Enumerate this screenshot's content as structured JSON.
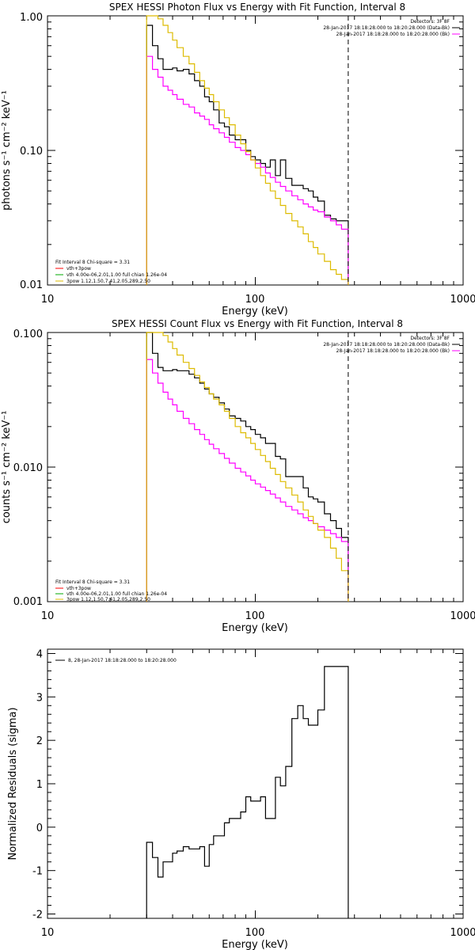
{
  "chart_data": [
    {
      "type": "line",
      "title": "SPEX HESSI Photon Flux vs Energy with Fit Function, Interval 8",
      "xlabel": "Energy (keV)",
      "ylabel": "photons s⁻¹ cm⁻² keV⁻¹",
      "xscale": "log",
      "yscale": "log",
      "xlim": [
        10,
        1000
      ],
      "ylim": [
        0.01,
        1.0
      ],
      "x_tick_labels": [
        "10",
        "100",
        "1000"
      ],
      "y_tick_labels": [
        "0.01",
        "0.10",
        "1.00"
      ],
      "fit_range_end_keV": 280,
      "legend_top_right": [
        {
          "text": "Detectors: 3F 8F",
          "color": "#000000"
        },
        {
          "text": "28-Jan-2017 18:18:28.000 to 18:20:28.000 (Data-Bk)",
          "color": "#000000"
        },
        {
          "text": "28-Jan-2017 18:18:28.000 to 18:20:28.000 (Bk)",
          "color": "#ff00ff"
        }
      ],
      "legend_bottom_left": [
        {
          "text": "Fit Interval 8   Chi-square = 3.31",
          "color": "#000000"
        },
        {
          "text": "vth+3pow",
          "color": "#ff0000"
        },
        {
          "text": "vth 4.00e-06,2.01,1.00  full chian 1.26e-04",
          "color": "#00aa00"
        },
        {
          "text": "3pow 1.12,1.50,7.41,2.05,289,2.50",
          "color": "#ddbb00"
        }
      ],
      "series": [
        {
          "name": "Data-Bk",
          "color": "#000000",
          "edges": [
            30,
            32,
            34,
            36,
            38,
            40,
            42,
            45,
            48,
            51,
            54,
            57,
            60,
            63,
            67,
            71,
            75,
            80,
            85,
            90,
            95,
            100,
            106,
            112,
            118,
            125,
            132,
            140,
            150,
            160,
            170,
            180,
            190,
            200,
            215,
            230,
            245,
            260,
            280
          ],
          "values": [
            0.85,
            0.6,
            0.48,
            0.4,
            0.4,
            0.41,
            0.39,
            0.4,
            0.37,
            0.33,
            0.3,
            0.25,
            0.23,
            0.2,
            0.16,
            0.15,
            0.13,
            0.12,
            0.12,
            0.1,
            0.09,
            0.085,
            0.08,
            0.075,
            0.085,
            0.065,
            0.085,
            0.062,
            0.055,
            0.055,
            0.052,
            0.05,
            0.045,
            0.042,
            0.033,
            0.031,
            0.03,
            0.03
          ]
        },
        {
          "name": "Bk",
          "color": "#ff00ff",
          "edges": [
            30,
            32,
            34,
            36,
            38,
            40,
            42,
            45,
            48,
            51,
            54,
            57,
            60,
            63,
            67,
            71,
            75,
            80,
            85,
            90,
            95,
            100,
            106,
            112,
            118,
            125,
            132,
            140,
            150,
            160,
            170,
            180,
            190,
            200,
            215,
            230,
            245,
            260,
            280
          ],
          "values": [
            0.5,
            0.4,
            0.35,
            0.3,
            0.28,
            0.26,
            0.24,
            0.22,
            0.21,
            0.19,
            0.18,
            0.17,
            0.155,
            0.145,
            0.135,
            0.125,
            0.115,
            0.105,
            0.1,
            0.093,
            0.085,
            0.08,
            0.075,
            0.068,
            0.063,
            0.058,
            0.054,
            0.05,
            0.046,
            0.043,
            0.04,
            0.038,
            0.036,
            0.035,
            0.032,
            0.03,
            0.028,
            0.026
          ]
        },
        {
          "name": "Fit (vth+3pow)",
          "color": "#ddbb00",
          "edges": [
            30,
            32,
            34,
            36,
            38,
            40,
            42,
            45,
            48,
            51,
            54,
            57,
            60,
            63,
            67,
            71,
            75,
            80,
            85,
            90,
            95,
            100,
            106,
            112,
            118,
            125,
            132,
            140,
            150,
            160,
            170,
            180,
            190,
            200,
            215,
            230,
            245,
            260,
            280
          ],
          "values": [
            1.0,
            1.0,
            0.95,
            0.85,
            0.75,
            0.66,
            0.58,
            0.5,
            0.44,
            0.38,
            0.33,
            0.29,
            0.26,
            0.23,
            0.2,
            0.175,
            0.155,
            0.13,
            0.112,
            0.098,
            0.085,
            0.074,
            0.065,
            0.057,
            0.05,
            0.044,
            0.039,
            0.034,
            0.03,
            0.027,
            0.024,
            0.021,
            0.019,
            0.017,
            0.015,
            0.013,
            0.012,
            0.011
          ]
        }
      ]
    },
    {
      "type": "line",
      "title": "SPEX HESSI Count Flux vs Energy with Fit Function, Interval 8",
      "xlabel": "Energy (keV)",
      "ylabel": "counts s⁻¹ cm⁻² keV⁻¹",
      "xscale": "log",
      "yscale": "log",
      "xlim": [
        10,
        1000
      ],
      "ylim": [
        0.001,
        0.1
      ],
      "x_tick_labels": [
        "10",
        "100",
        "1000"
      ],
      "y_tick_labels": [
        "0.001",
        "0.010",
        "0.100"
      ],
      "fit_range_end_keV": 280,
      "legend_top_right": [
        {
          "text": "Detectors: 3F 8F",
          "color": "#000000"
        },
        {
          "text": "28-Jan-2017 18:18:28.000 to 18:20:28.000 (Data-Bk)",
          "color": "#000000"
        },
        {
          "text": "28-Jan-2017 18:18:28.000 to 18:20:28.000 (Bk)",
          "color": "#ff00ff"
        }
      ],
      "legend_bottom_left": [
        {
          "text": "Fit Interval 8   Chi-square = 3.31",
          "color": "#000000"
        },
        {
          "text": "vth+3pow",
          "color": "#ff0000"
        },
        {
          "text": "vth 4.00e-06,2.01,1.00  full chian 1.26e-04",
          "color": "#00aa00"
        },
        {
          "text": "3pow 1.12,1.50,7.41,2.05,289,2.50",
          "color": "#ddbb00"
        }
      ],
      "series": [
        {
          "name": "Data-Bk",
          "color": "#000000",
          "edges": [
            30,
            32,
            34,
            36,
            38,
            40,
            42,
            45,
            48,
            51,
            54,
            57,
            60,
            63,
            67,
            71,
            75,
            80,
            85,
            90,
            95,
            100,
            106,
            112,
            118,
            125,
            132,
            140,
            150,
            160,
            170,
            180,
            190,
            200,
            215,
            230,
            245,
            260,
            280
          ],
          "values": [
            0.1,
            0.07,
            0.055,
            0.052,
            0.052,
            0.053,
            0.052,
            0.052,
            0.049,
            0.046,
            0.042,
            0.038,
            0.035,
            0.033,
            0.03,
            0.027,
            0.024,
            0.023,
            0.022,
            0.02,
            0.019,
            0.0175,
            0.0165,
            0.015,
            0.015,
            0.012,
            0.0115,
            0.0085,
            0.0085,
            0.0085,
            0.007,
            0.006,
            0.0058,
            0.0055,
            0.0045,
            0.004,
            0.0035,
            0.003
          ]
        },
        {
          "name": "Bk",
          "color": "#ff00ff",
          "edges": [
            30,
            32,
            34,
            36,
            38,
            40,
            42,
            45,
            48,
            51,
            54,
            57,
            60,
            63,
            67,
            71,
            75,
            80,
            85,
            90,
            95,
            100,
            106,
            112,
            118,
            125,
            132,
            140,
            150,
            160,
            170,
            180,
            190,
            200,
            215,
            230,
            245,
            260,
            280
          ],
          "values": [
            0.063,
            0.05,
            0.042,
            0.036,
            0.032,
            0.029,
            0.026,
            0.023,
            0.021,
            0.019,
            0.0175,
            0.016,
            0.0148,
            0.0137,
            0.0126,
            0.0116,
            0.0107,
            0.0098,
            0.0092,
            0.0086,
            0.008,
            0.0075,
            0.0071,
            0.0067,
            0.0063,
            0.0059,
            0.0055,
            0.0051,
            0.0048,
            0.0045,
            0.0042,
            0.004,
            0.0038,
            0.0036,
            0.0034,
            0.0032,
            0.003,
            0.0028
          ]
        },
        {
          "name": "Fit (vth+3pow)",
          "color": "#ddbb00",
          "edges": [
            30,
            32,
            34,
            36,
            38,
            40,
            42,
            45,
            48,
            51,
            54,
            57,
            60,
            63,
            67,
            71,
            75,
            80,
            85,
            90,
            95,
            100,
            106,
            112,
            118,
            125,
            132,
            140,
            150,
            160,
            170,
            180,
            190,
            200,
            215,
            230,
            245,
            260,
            280
          ],
          "values": [
            0.1,
            0.1,
            0.1,
            0.095,
            0.085,
            0.076,
            0.068,
            0.06,
            0.054,
            0.048,
            0.043,
            0.039,
            0.035,
            0.032,
            0.029,
            0.026,
            0.023,
            0.02,
            0.018,
            0.0165,
            0.015,
            0.0135,
            0.0122,
            0.011,
            0.0098,
            0.0088,
            0.0078,
            0.007,
            0.0062,
            0.0055,
            0.0048,
            0.0043,
            0.0038,
            0.0034,
            0.003,
            0.0025,
            0.0021,
            0.0017
          ]
        }
      ]
    },
    {
      "type": "line",
      "title": "",
      "xlabel": "Energy (keV)",
      "ylabel": "Normalized Residuals (sigma)",
      "xscale": "log",
      "yscale": "linear",
      "xlim": [
        10,
        1000
      ],
      "ylim": [
        -2.1,
        4.1
      ],
      "x_tick_labels": [
        "10",
        "100",
        "1000"
      ],
      "y_ticks": [
        -2,
        -1,
        0,
        1,
        2,
        3,
        4
      ],
      "legend": [
        {
          "text": "8, 28-Jan-2017 18:18:28.000 to 18:20:28.000",
          "color": "#000000"
        }
      ],
      "series": [
        {
          "name": "",
          "color": "#000000",
          "edges": [
            30,
            32,
            34,
            36,
            38,
            40,
            42,
            45,
            48,
            51,
            54,
            57,
            60,
            63,
            67,
            71,
            75,
            80,
            85,
            90,
            95,
            100,
            106,
            112,
            118,
            125,
            132,
            140,
            150,
            160,
            170,
            180,
            190,
            200,
            215,
            230,
            245,
            260,
            280
          ],
          "values": [
            -0.35,
            -0.7,
            -1.15,
            -0.8,
            -0.8,
            -0.6,
            -0.55,
            -0.45,
            -0.5,
            -0.5,
            -0.45,
            -0.9,
            -0.4,
            -0.2,
            -0.2,
            0.1,
            0.2,
            0.2,
            0.35,
            0.7,
            0.6,
            0.6,
            0.7,
            0.2,
            0.2,
            1.15,
            0.95,
            1.4,
            2.5,
            2.8,
            2.5,
            2.35,
            2.35,
            2.7,
            3.7,
            3.7,
            3.7,
            3.7
          ]
        }
      ]
    }
  ]
}
